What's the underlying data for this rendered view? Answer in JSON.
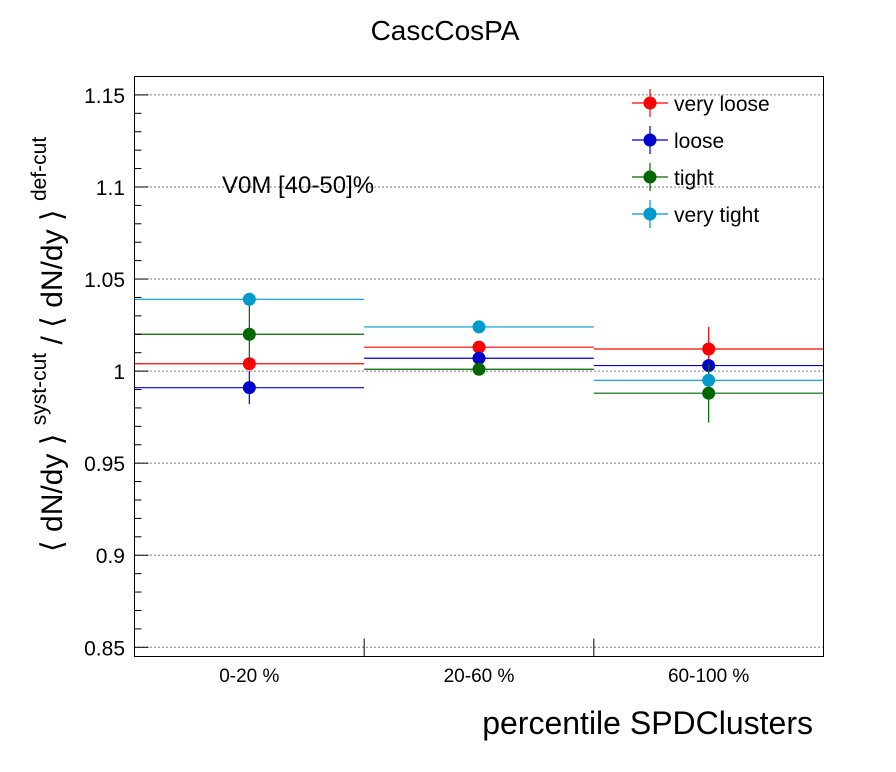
{
  "chart_data": {
    "type": "scatter",
    "title": "CascCosPA",
    "annotation": "V0M [40-50]%",
    "xlabel": "percentile SPDClusters",
    "ylabel": {
      "part1": "⟨ dN/dy ⟩",
      "sup1": "syst-cut",
      "sep": " / ",
      "part2": "⟨ dN/dy ⟩",
      "sup2": "def-cut"
    },
    "categories": [
      "0-20 %",
      "20-60 %",
      "60-100 %"
    ],
    "ylim": [
      0.845,
      1.16
    ],
    "yticks": [
      "0.85",
      "0.9",
      "0.95",
      "1",
      "1.05",
      "1.1",
      "1.15"
    ],
    "grid": "horizontal dotted",
    "legend_position": "top-right",
    "series": [
      {
        "name": "very loose",
        "color": "#ff0000",
        "values": [
          1.004,
          1.013,
          1.012
        ],
        "errors": [
          0.0,
          0.003,
          0.012
        ]
      },
      {
        "name": "loose",
        "color": "#0000cc",
        "values": [
          0.991,
          1.007,
          1.003
        ],
        "errors": [
          0.009,
          0.002,
          0.0
        ]
      },
      {
        "name": "tight",
        "color": "#006600",
        "values": [
          1.02,
          1.001,
          0.988
        ],
        "errors": [
          0.016,
          0.0,
          0.016
        ]
      },
      {
        "name": "very tight",
        "color": "#0099cc",
        "values": [
          1.039,
          1.024,
          0.995
        ],
        "errors": [
          0.0,
          0.0,
          0.0
        ]
      }
    ]
  }
}
